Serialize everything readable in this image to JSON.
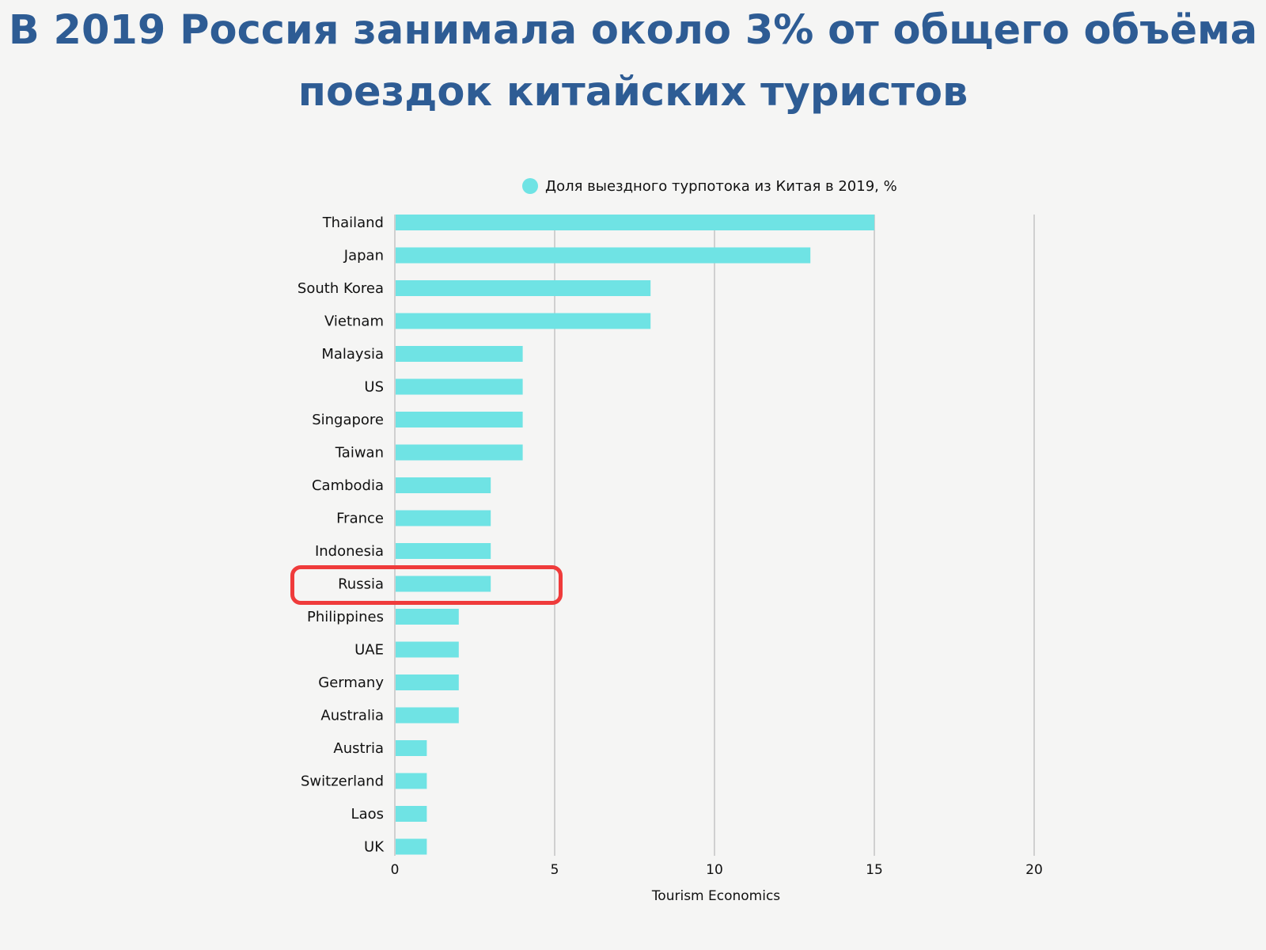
{
  "title": "В 2019 Россия занимала около 3% от общего объёма поездок китайских туристов",
  "source": "Tourism Economics",
  "chart_data": {
    "type": "bar",
    "orientation": "horizontal",
    "categories": [
      "Thailand",
      "Japan",
      "South Korea",
      "Vietnam",
      "Malaysia",
      "US",
      "Singapore",
      "Taiwan",
      "Cambodia",
      "France",
      "Indonesia",
      "Russia",
      "Philippines",
      "UAE",
      "Germany",
      "Australia",
      "Austria",
      "Switzerland",
      "Laos",
      "UK"
    ],
    "series": [
      {
        "name": "Доля выездного турпотока из Китая в 2019, %",
        "values": [
          15,
          13,
          8,
          8,
          4,
          4,
          4,
          4,
          3,
          3,
          3,
          3,
          2,
          2,
          2,
          2,
          1,
          1,
          1,
          1
        ],
        "color": "#6fe3e4"
      }
    ],
    "xlim": [
      0,
      20
    ],
    "xticks": [
      0,
      5,
      10,
      15,
      20
    ],
    "grid": true,
    "legend_position": "top",
    "highlighted_category": "Russia",
    "highlight_color": "#ef3b3b"
  }
}
